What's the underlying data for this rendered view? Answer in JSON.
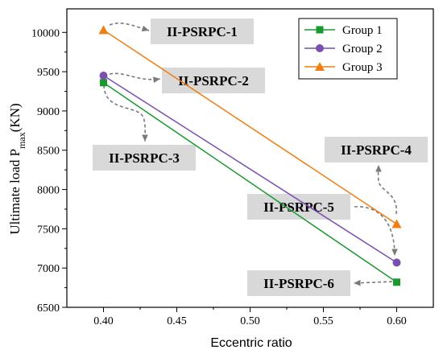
{
  "chart_data": {
    "type": "line",
    "xlabel": "Eccentric ratio",
    "ylabel_main": "Ultimate load P",
    "ylabel_sub": "max",
    "ylabel_unit": "(KN)",
    "xlim": [
      0.375,
      0.625
    ],
    "ylim": [
      6500,
      10300
    ],
    "xticks": [
      0.4,
      0.45,
      0.5,
      0.55,
      0.6
    ],
    "xtick_labels": [
      "0.40",
      "0.45",
      "0.50",
      "0.55",
      "0.60"
    ],
    "yticks": [
      6500,
      7000,
      7500,
      8000,
      8500,
      9000,
      9500,
      10000
    ],
    "ytick_labels": [
      "6500",
      "7000",
      "7500",
      "8000",
      "8500",
      "9000",
      "9500",
      "10000"
    ],
    "legend_position": "top-right",
    "series": [
      {
        "name": "Group 1",
        "color": "#1a9a2e",
        "marker": "square",
        "x": [
          0.4,
          0.6
        ],
        "y": [
          9360,
          6820
        ]
      },
      {
        "name": "Group 2",
        "color": "#7a4fb0",
        "marker": "circle",
        "x": [
          0.4,
          0.6
        ],
        "y": [
          9450,
          7070
        ]
      },
      {
        "name": "Group 3",
        "color": "#f07e10",
        "marker": "triangle",
        "x": [
          0.4,
          0.6
        ],
        "y": [
          10030,
          7560
        ]
      }
    ],
    "annotations": [
      {
        "text": "II-PSRPC-1",
        "x": 0.4,
        "y": 10030
      },
      {
        "text": "II-PSRPC-2",
        "x": 0.4,
        "y": 9450
      },
      {
        "text": "II-PSRPC-3",
        "x": 0.4,
        "y": 9360
      },
      {
        "text": "II-PSRPC-4",
        "x": 0.6,
        "y": 7560
      },
      {
        "text": "II-PSRPC-5",
        "x": 0.6,
        "y": 7070
      },
      {
        "text": "II-PSRPC-6",
        "x": 0.6,
        "y": 6820
      }
    ]
  }
}
